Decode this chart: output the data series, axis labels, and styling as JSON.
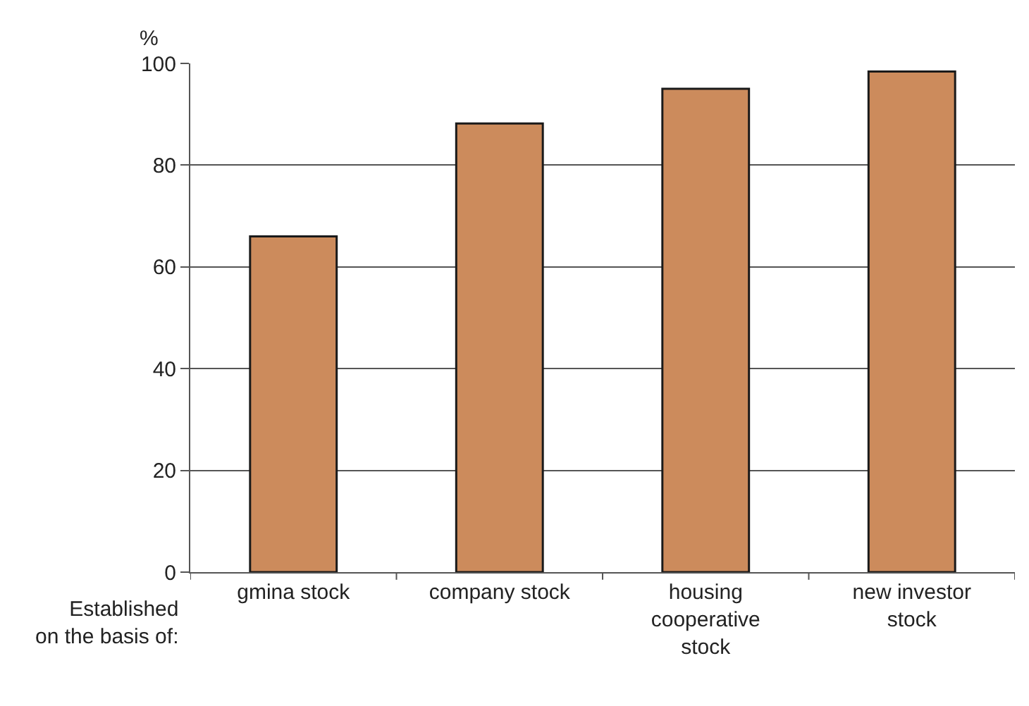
{
  "chart_data": {
    "type": "bar",
    "xlabel": "Established on the basis of:",
    "ylabel": "%",
    "categories": [
      "gmina stock",
      "company stock",
      "housing cooperative stock",
      "new investor stock"
    ],
    "values": [
      66,
      88.2,
      95,
      98.4
    ],
    "color": "#cc8b5c",
    "ylim": [
      0,
      100
    ],
    "yticks": [
      0,
      20,
      40,
      60,
      80,
      100
    ],
    "grid": "y",
    "legend": false
  }
}
